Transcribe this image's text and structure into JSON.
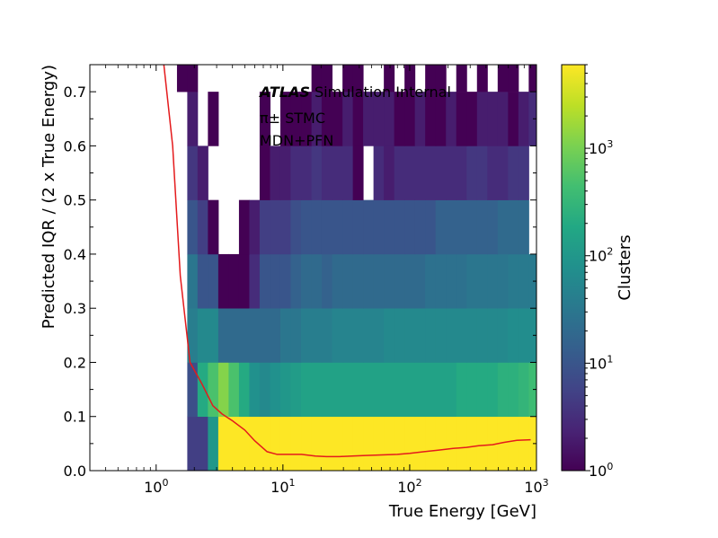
{
  "chart_data": {
    "type": "heatmap",
    "xlabel": "True Energy [GeV]",
    "ylabel": "Predicted IQR / (2 x True Energy)",
    "xscale": "log",
    "xlim": [
      0.3,
      1000
    ],
    "ylim": [
      0.0,
      0.75
    ],
    "x_tick_labels": [
      "10^0",
      "10^1",
      "10^2",
      "10^3"
    ],
    "y_tick_labels": [
      "0.0",
      "0.1",
      "0.2",
      "0.3",
      "0.4",
      "0.5",
      "0.6",
      "0.7"
    ],
    "colorbar": {
      "label": "Clusters",
      "scale": "log",
      "range": [
        1,
        6000
      ],
      "tick_labels": [
        "10^0",
        "10^1",
        "10^2",
        "10^3"
      ],
      "colormap": "viridis"
    },
    "annotations": {
      "atlas": "ATLAS",
      "atlas_rest": " Simulation Internal",
      "particle": "π±  STMC",
      "method": "MDN+PFN"
    },
    "x_bin_edges": [
      1.0,
      1.21,
      1.46,
      1.76,
      2.12,
      2.56,
      3.09,
      3.73,
      4.5,
      5.43,
      6.55,
      7.91,
      9.54,
      11.5,
      13.9,
      16.8,
      20.2,
      24.4,
      29.5,
      35.6,
      42.9,
      51.8,
      62.5,
      75.4,
      91.0,
      109.8,
      132.5,
      159.9,
      193.0,
      232.9,
      281.1,
      339.3,
      409.5,
      494.2,
      596.4,
      719.7,
      868.6,
      1048.2
    ],
    "y_bin_edges": [
      0.0,
      0.1,
      0.2,
      0.3,
      0.4,
      0.5,
      0.6,
      0.7,
      0.75
    ],
    "counts": [
      [
        null,
        null,
        null,
        5,
        5,
        100,
        6000,
        6000,
        6000,
        6000,
        6000,
        6000,
        6000,
        6000,
        6000,
        6000,
        6000,
        6000,
        6000,
        6000,
        6000,
        6000,
        6000,
        6000,
        6000,
        6000,
        6000,
        6000,
        6000,
        6000,
        6000,
        6000,
        6000,
        6000,
        6000,
        6000,
        6000
      ],
      [
        null,
        null,
        null,
        8,
        200,
        500,
        1200,
        500,
        200,
        80,
        60,
        80,
        100,
        120,
        150,
        150,
        150,
        150,
        150,
        150,
        150,
        150,
        150,
        150,
        150,
        150,
        150,
        150,
        150,
        200,
        200,
        200,
        200,
        250,
        250,
        300,
        400
      ],
      [
        null,
        null,
        null,
        40,
        60,
        60,
        20,
        20,
        20,
        20,
        20,
        20,
        30,
        30,
        40,
        40,
        40,
        50,
        50,
        50,
        50,
        50,
        60,
        60,
        60,
        60,
        60,
        60,
        60,
        60,
        60,
        60,
        60,
        60,
        70,
        70,
        70
      ],
      [
        null,
        null,
        null,
        30,
        10,
        10,
        1,
        1,
        1,
        3,
        10,
        10,
        10,
        15,
        20,
        20,
        15,
        20,
        20,
        20,
        20,
        20,
        20,
        20,
        20,
        20,
        25,
        25,
        25,
        25,
        30,
        30,
        30,
        30,
        35,
        35,
        35
      ],
      [
        null,
        null,
        null,
        10,
        5,
        1,
        null,
        null,
        1,
        2,
        5,
        5,
        5,
        8,
        10,
        10,
        10,
        10,
        10,
        10,
        10,
        10,
        10,
        10,
        10,
        10,
        10,
        15,
        15,
        15,
        15,
        15,
        15,
        20,
        20,
        20,
        null
      ],
      [
        null,
        null,
        null,
        4,
        2,
        null,
        null,
        null,
        null,
        null,
        1,
        2,
        2,
        3,
        3,
        4,
        3,
        3,
        3,
        1,
        null,
        3,
        2,
        3,
        3,
        3,
        3,
        3,
        3,
        3,
        4,
        4,
        3,
        3,
        4,
        4,
        null
      ],
      [
        null,
        null,
        null,
        2,
        null,
        1,
        null,
        null,
        null,
        null,
        1,
        null,
        1,
        1,
        1,
        2,
        1,
        1,
        2,
        1,
        2,
        2,
        2,
        1,
        1,
        2,
        1,
        1,
        2,
        1,
        1,
        2,
        2,
        2,
        1,
        2,
        3
      ],
      [
        null,
        null,
        1,
        1,
        null,
        null,
        null,
        null,
        null,
        null,
        null,
        null,
        null,
        null,
        null,
        1,
        1,
        null,
        1,
        1,
        null,
        null,
        1,
        null,
        1,
        null,
        1,
        1,
        null,
        1,
        null,
        1,
        null,
        1,
        1,
        null,
        1
      ]
    ],
    "series": [
      {
        "color": "#e41a1c",
        "x": [
          1.15,
          1.35,
          1.55,
          1.85,
          2.3,
          2.8,
          3.3,
          4.0,
          5.0,
          6.0,
          7.5,
          9.0,
          11.0,
          14.0,
          18.0,
          22.0,
          28.0,
          35.0,
          45.0,
          60.0,
          80.0,
          100.0,
          130.0,
          170.0,
          220.0,
          280.0,
          350.0,
          450.0,
          550.0,
          700.0,
          900.0
        ],
        "y": [
          0.75,
          0.6,
          0.36,
          0.2,
          0.16,
          0.12,
          0.105,
          0.092,
          0.075,
          0.055,
          0.035,
          0.03,
          0.03,
          0.03,
          0.027,
          0.026,
          0.026,
          0.027,
          0.028,
          0.029,
          0.03,
          0.032,
          0.035,
          0.038,
          0.041,
          0.043,
          0.046,
          0.048,
          0.052,
          0.056,
          0.057
        ]
      }
    ]
  }
}
